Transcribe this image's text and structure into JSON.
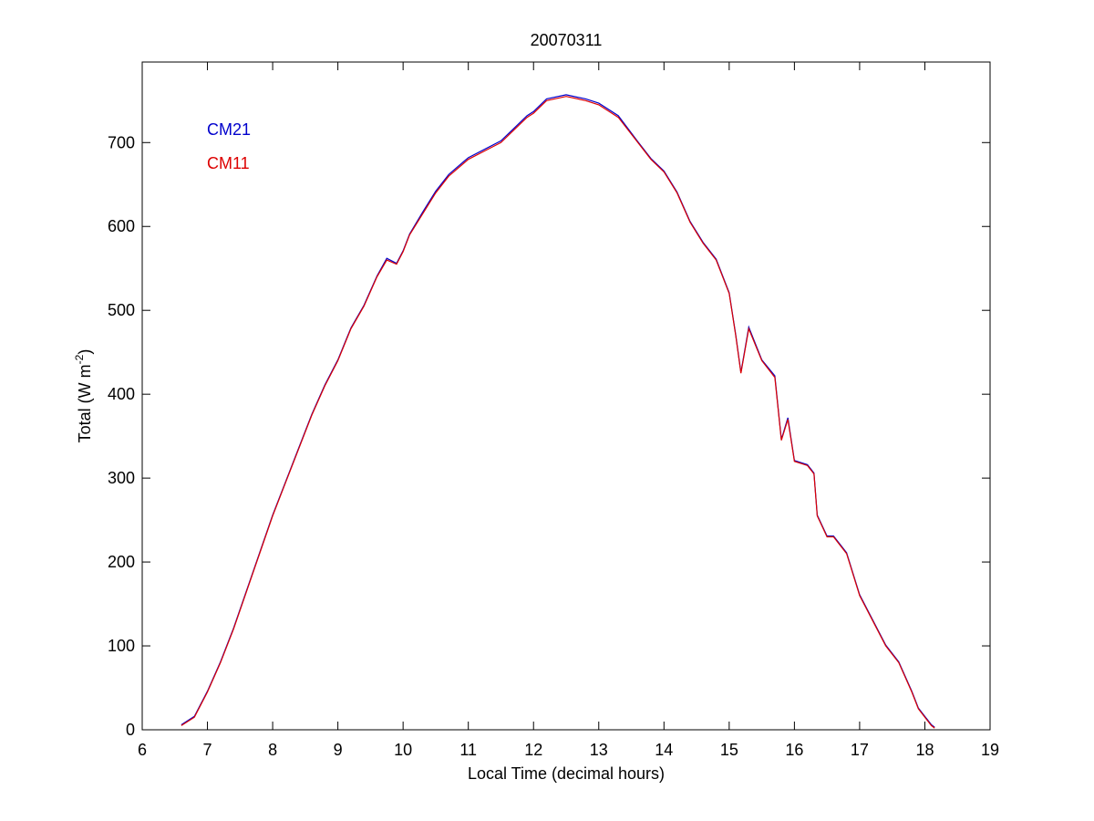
{
  "chart_data": {
    "type": "line",
    "title": "20070311",
    "xlabel": "Local Time (decimal hours)",
    "ylabel": {
      "text": "Total (W m",
      "superscript": "-2",
      "suffix": ")"
    },
    "x": [
      6.6,
      6.8,
      7.0,
      7.2,
      7.4,
      7.6,
      7.8,
      8.0,
      8.2,
      8.4,
      8.6,
      8.8,
      9.0,
      9.2,
      9.4,
      9.6,
      9.75,
      9.9,
      10.0,
      10.1,
      10.3,
      10.5,
      10.7,
      11.0,
      11.3,
      11.5,
      11.7,
      11.9,
      12.0,
      12.2,
      12.5,
      12.8,
      13.0,
      13.3,
      13.6,
      13.8,
      14.0,
      14.2,
      14.4,
      14.6,
      14.8,
      15.0,
      15.1,
      15.18,
      15.3,
      15.5,
      15.7,
      15.8,
      15.9,
      16.0,
      16.2,
      16.3,
      16.35,
      16.5,
      16.6,
      16.8,
      17.0,
      17.2,
      17.4,
      17.6,
      17.8,
      17.9,
      18.1,
      18.15
    ],
    "series": [
      {
        "name": "CM21",
        "color": "#0000cc",
        "values": [
          6,
          16,
          46,
          81,
          121,
          166,
          211,
          256,
          296,
          336,
          376,
          411,
          441,
          479,
          506,
          541,
          562,
          556,
          571,
          591,
          617,
          642,
          662,
          682,
          694,
          702,
          717,
          732,
          737,
          752,
          757,
          752,
          747,
          732,
          701,
          681,
          666,
          641,
          606,
          581,
          561,
          521,
          471,
          426,
          480,
          441,
          422,
          346,
          372,
          321,
          316,
          306,
          256,
          231,
          231,
          211,
          161,
          131,
          101,
          81,
          46,
          26,
          6,
          3
        ]
      },
      {
        "name": "CM11",
        "color": "#dd0000",
        "values": [
          5,
          15,
          45,
          80,
          120,
          165,
          210,
          255,
          295,
          335,
          375,
          410,
          440,
          478,
          505,
          540,
          560,
          555,
          570,
          590,
          615,
          640,
          660,
          680,
          692,
          700,
          715,
          730,
          735,
          750,
          755,
          750,
          745,
          730,
          700,
          680,
          665,
          640,
          605,
          580,
          560,
          520,
          470,
          425,
          478,
          440,
          420,
          345,
          370,
          320,
          315,
          305,
          255,
          230,
          230,
          210,
          160,
          130,
          100,
          80,
          45,
          25,
          5,
          2
        ]
      }
    ],
    "xlim": [
      6,
      19
    ],
    "xticks": [
      6,
      7,
      8,
      9,
      10,
      11,
      12,
      13,
      14,
      15,
      16,
      17,
      18,
      19
    ],
    "ylim": [
      0,
      796
    ],
    "yticks": [
      0,
      100,
      200,
      300,
      400,
      500,
      600,
      700
    ],
    "grid": false,
    "legend": "upper left"
  }
}
